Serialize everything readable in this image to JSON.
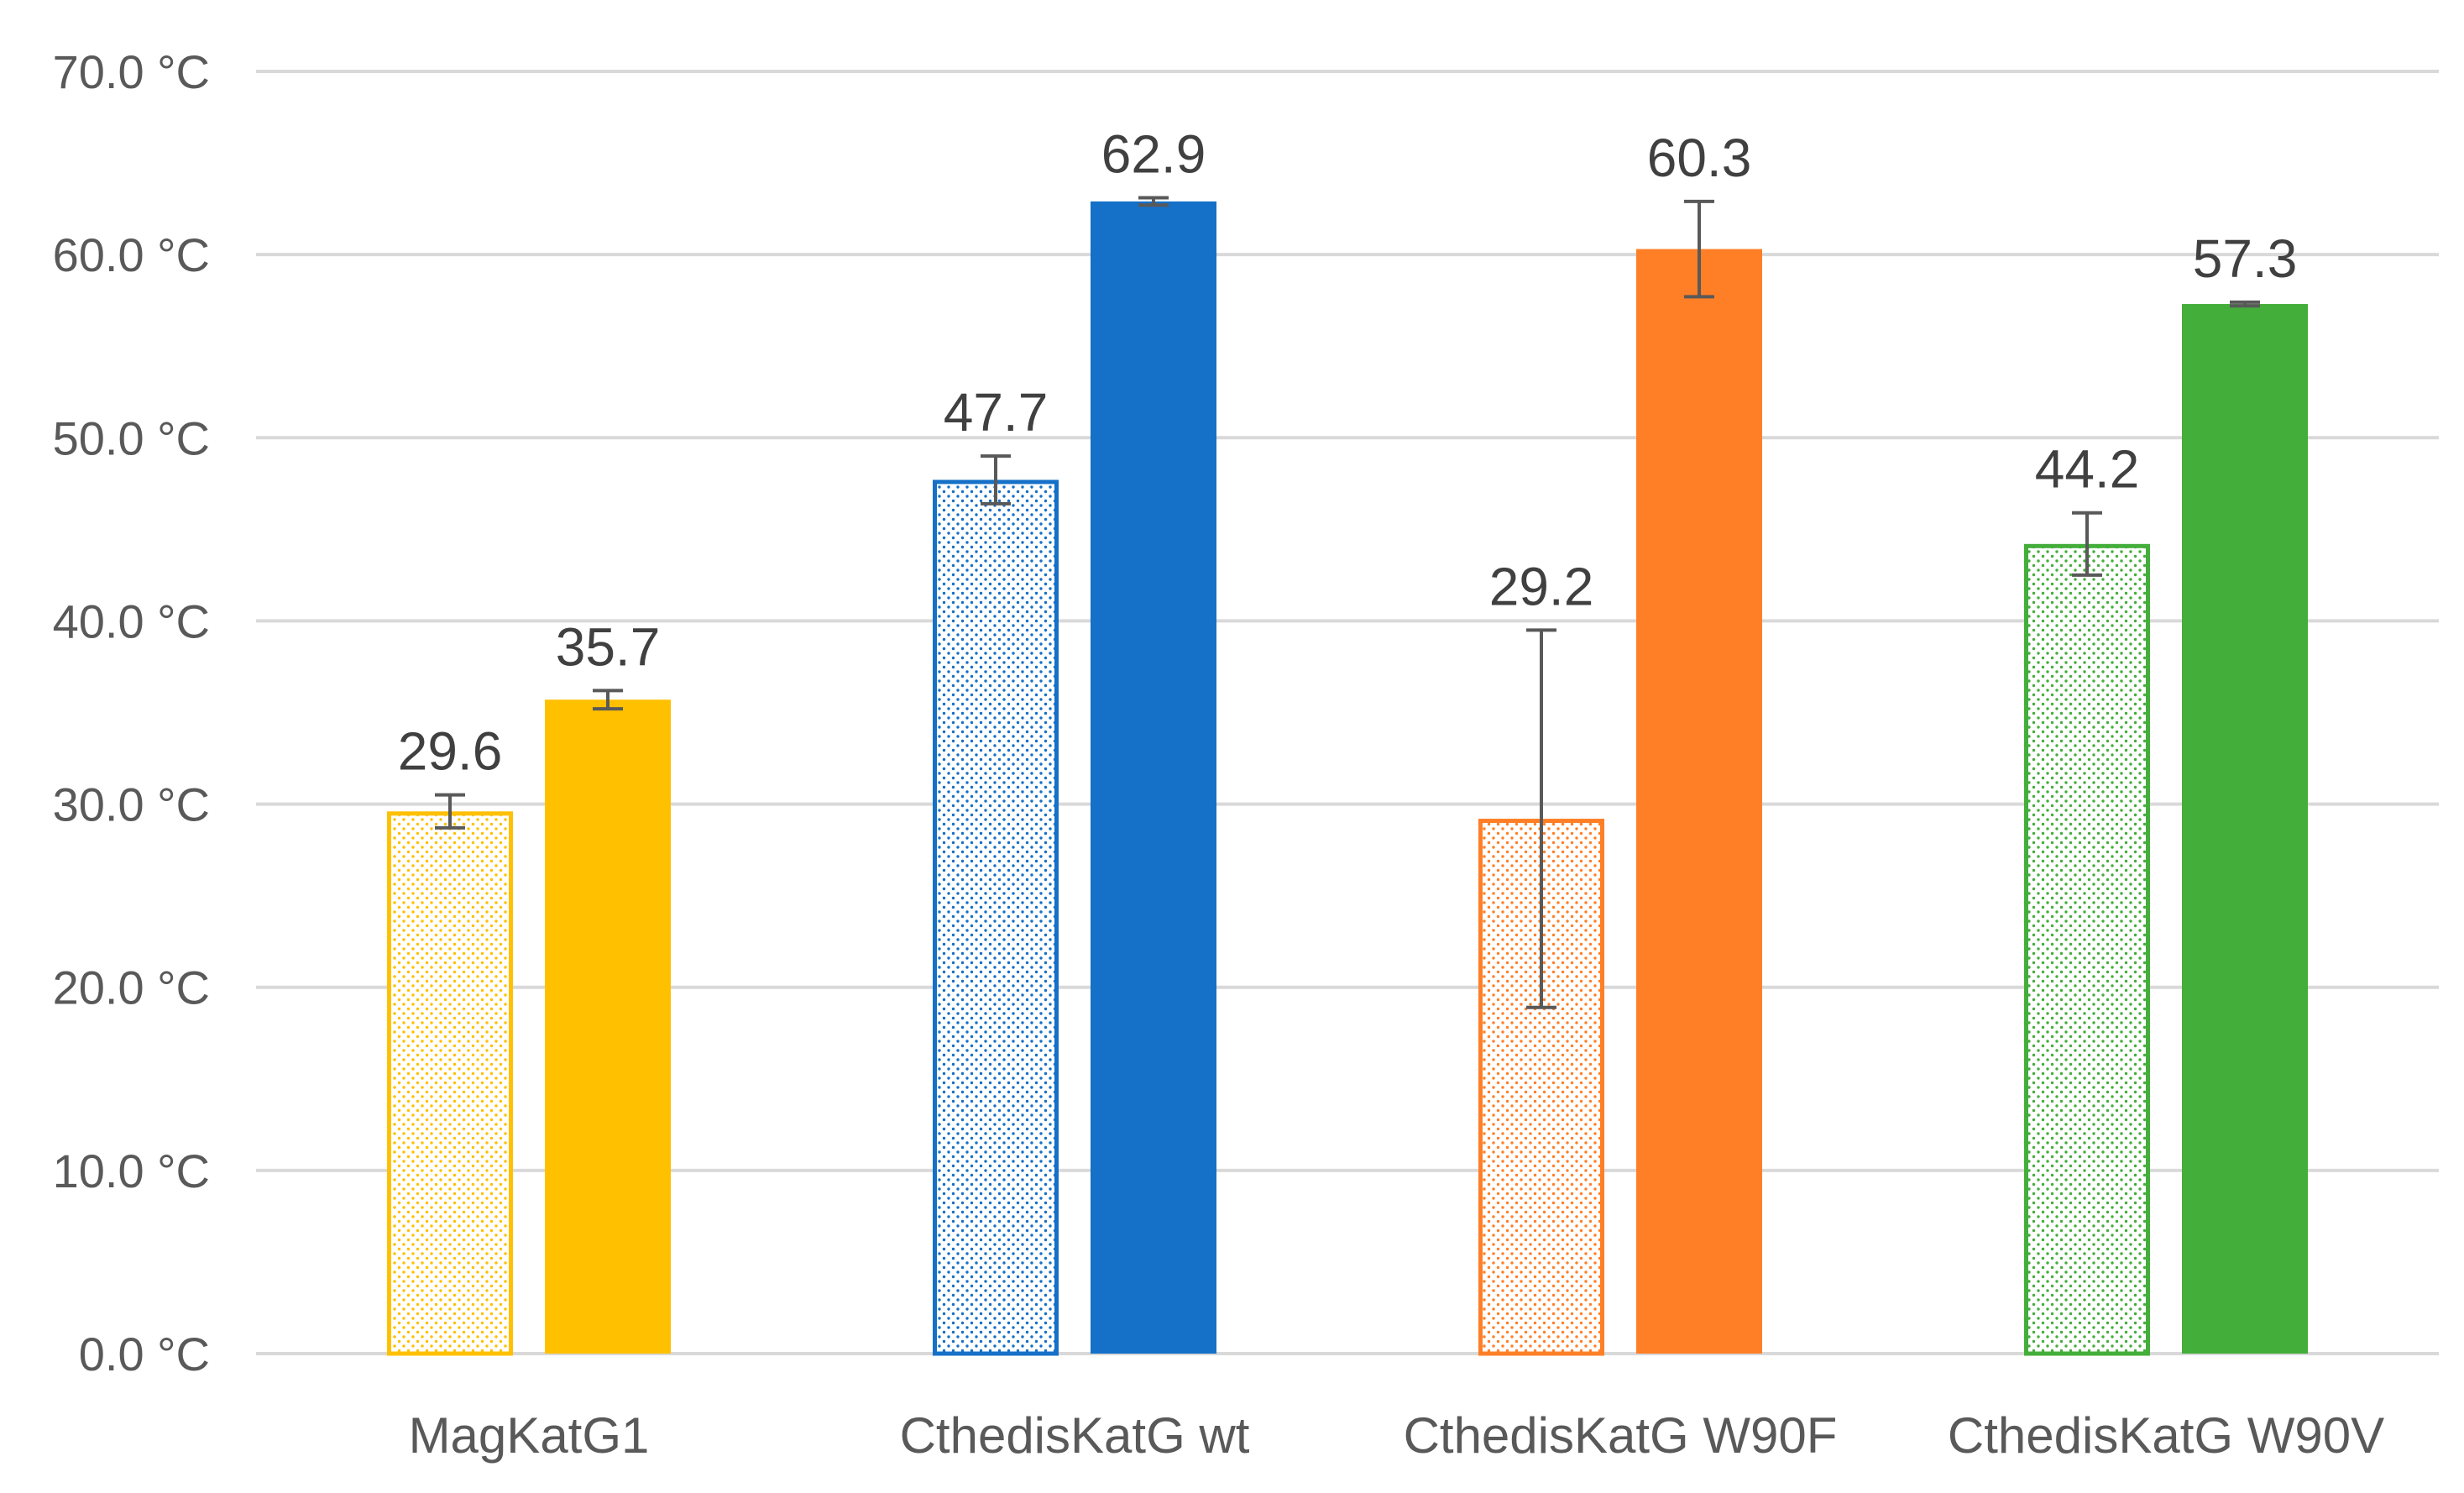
{
  "chart_data": {
    "type": "bar",
    "title": "",
    "xlabel": "",
    "ylabel": "",
    "ylim": [
      0,
      70
    ],
    "ytick_values": [
      0,
      10,
      20,
      30,
      40,
      50,
      60,
      70
    ],
    "ytick_labels": [
      "0.0 °C",
      "10.0 °C",
      "20.0 °C",
      "30.0 °C",
      "40.0 °C",
      "50.0 °C",
      "60.0 °C",
      "70.0 °C"
    ],
    "grid": true,
    "legend": "none",
    "categories": [
      "MagKatG1",
      "CthedisKatG wt",
      "CthedisKatG W90F",
      "CthedisKatG W90V"
    ],
    "category_colors": [
      "#FFC000",
      "#1570C8",
      "#FF7F27",
      "#43AE3A"
    ],
    "series": [
      {
        "name": "dotted",
        "style": "dotted",
        "values": [
          29.6,
          47.7,
          29.2,
          44.2
        ],
        "errors": [
          0.9,
          1.3,
          10.3,
          1.7
        ],
        "labels": [
          "29.6",
          "47.7",
          "29.2",
          "44.2"
        ]
      },
      {
        "name": "solid",
        "style": "solid",
        "values": [
          35.7,
          62.9,
          60.3,
          57.3
        ],
        "errors": [
          0.5,
          0.2,
          2.6,
          0.1
        ],
        "labels": [
          "35.7",
          "62.9",
          "60.3",
          "57.3"
        ]
      }
    ]
  }
}
